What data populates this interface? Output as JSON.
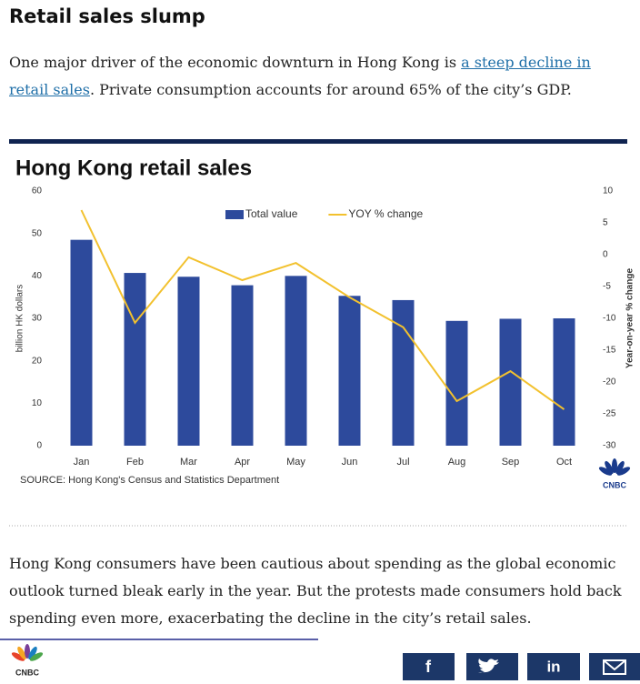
{
  "header": {
    "title": "Retail sales slump"
  },
  "intro": {
    "before": "One major driver of the economic downturn in Hong Kong is ",
    "link": "a steep decline in retail sales",
    "after": ". Private consumption accounts for around 65% of the city’s GDP."
  },
  "chart_data": {
    "type": "bar",
    "title": "Hong Kong retail sales",
    "categories": [
      "Jan",
      "Feb",
      "Mar",
      "Apr",
      "May",
      "Jun",
      "Jul",
      "Aug",
      "Sep",
      "Oct"
    ],
    "series": [
      {
        "name": "Total value",
        "color": "#2d4a9c",
        "values": [
          48.5,
          40.7,
          39.8,
          37.8,
          40.0,
          35.3,
          34.3,
          29.4,
          29.9,
          30.0
        ]
      },
      {
        "name": "YOY % change",
        "color": "#f2c12e",
        "axis": "y2",
        "values": [
          7.0,
          -10.7,
          -0.4,
          -4.0,
          -1.3,
          -6.7,
          -11.4,
          -23.0,
          -18.3,
          -24.3
        ]
      }
    ],
    "ylabel": "billion HK dollars",
    "y2label": "Year-on-year % change",
    "ylim": [
      0,
      60
    ],
    "yticks": [
      0,
      10,
      20,
      30,
      40,
      50,
      60
    ],
    "y2lim": [
      -30,
      10
    ],
    "y2ticks": [
      -30,
      -25,
      -20,
      -15,
      -10,
      -5,
      0,
      5,
      10
    ],
    "legend": "top",
    "source": "SOURCE: Hong Kong's Census and Statistics Department"
  },
  "body": {
    "paragraph": "Hong Kong consumers have been cautious about spending as the global economic outlook turned bleak early in the year. But the protests made consumers hold back spending even more, exacerbating the decline in the city’s retail sales."
  },
  "logo": "CNBC",
  "share": {
    "facebook": "f",
    "linkedin": "in"
  }
}
